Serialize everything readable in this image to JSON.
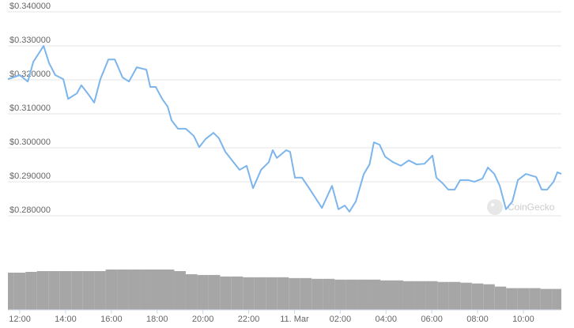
{
  "chart_data": {
    "type": "line",
    "watermark": "CoinGecko",
    "color": "#7cb5ec",
    "grid": true,
    "xlim": [
      -0.52,
      23.66
    ],
    "ylim": [
      0.2765,
      0.3435
    ],
    "yticks": [
      {
        "value": 0.28,
        "label": "$0.280000"
      },
      {
        "value": 0.29,
        "label": "$0.290000"
      },
      {
        "value": 0.3,
        "label": "$0.300000"
      },
      {
        "value": 0.31,
        "label": "$0.310000"
      },
      {
        "value": 0.32,
        "label": "$0.320000"
      },
      {
        "value": 0.33,
        "label": "$0.330000"
      },
      {
        "value": 0.34,
        "label": "$0.340000"
      }
    ],
    "xticks": [
      {
        "value": 0,
        "label": "12:00"
      },
      {
        "value": 2,
        "label": "14:00"
      },
      {
        "value": 4,
        "label": "16:00"
      },
      {
        "value": 6,
        "label": "18:00"
      },
      {
        "value": 8,
        "label": "20:00"
      },
      {
        "value": 10,
        "label": "22:00"
      },
      {
        "value": 12,
        "label": "11. Mar"
      },
      {
        "value": 14,
        "label": "02:00"
      },
      {
        "value": 16,
        "label": "04:00"
      },
      {
        "value": 18,
        "label": "06:00"
      },
      {
        "value": 20,
        "label": "08:00"
      },
      {
        "value": 22,
        "label": "10:00"
      }
    ],
    "x": [
      -0.52,
      0,
      0.35,
      0.59,
      1.04,
      1.28,
      1.55,
      1.9,
      2.11,
      2.49,
      2.69,
      3.01,
      3.25,
      3.52,
      3.87,
      4.15,
      4.49,
      4.77,
      5.11,
      5.53,
      5.7,
      5.94,
      6.22,
      6.46,
      6.63,
      6.91,
      7.25,
      7.6,
      7.84,
      8.12,
      8.46,
      8.7,
      8.98,
      9.33,
      9.6,
      9.91,
      10.19,
      10.54,
      10.88,
      11.05,
      11.23,
      11.64,
      11.81,
      12.02,
      12.33,
      12.68,
      12.95,
      13.2,
      13.64,
      13.92,
      14.2,
      14.4,
      14.68,
      15.03,
      15.28,
      15.47,
      15.72,
      15.96,
      16.3,
      16.65,
      16.99,
      17.34,
      17.68,
      18.03,
      18.2,
      18.48,
      18.72,
      19,
      19.24,
      19.59,
      19.86,
      20.21,
      20.45,
      20.73,
      20.97,
      21.24,
      21.52,
      21.76,
      22.11,
      22.56,
      22.8,
      23.04,
      23.32,
      23.49,
      23.66
    ],
    "values": [
      0.3202,
      0.3214,
      0.3195,
      0.3253,
      0.33,
      0.3249,
      0.3214,
      0.3202,
      0.3144,
      0.316,
      0.3184,
      0.3156,
      0.3133,
      0.3202,
      0.326,
      0.326,
      0.3207,
      0.3195,
      0.3237,
      0.323,
      0.3179,
      0.3179,
      0.3144,
      0.3121,
      0.3081,
      0.3056,
      0.3056,
      0.3035,
      0.3002,
      0.3026,
      0.3044,
      0.3028,
      0.2988,
      0.2958,
      0.2935,
      0.2947,
      0.2881,
      0.2935,
      0.2958,
      0.2993,
      0.297,
      0.2993,
      0.2988,
      0.2912,
      0.2912,
      0.2877,
      0.2849,
      0.2823,
      0.2888,
      0.2819,
      0.283,
      0.2812,
      0.2842,
      0.2923,
      0.2951,
      0.3016,
      0.3009,
      0.2974,
      0.2958,
      0.2947,
      0.2963,
      0.2951,
      0.2953,
      0.2977,
      0.2912,
      0.2895,
      0.2877,
      0.2877,
      0.2905,
      0.2905,
      0.29,
      0.2909,
      0.2942,
      0.2923,
      0.2888,
      0.2819,
      0.2842,
      0.2905,
      0.2923,
      0.2914,
      0.2877,
      0.2877,
      0.29,
      0.2928,
      0.2923
    ],
    "volume": {
      "color": "#a6a6a6",
      "ylim": [
        0,
        50
      ],
      "x": [
        -0.5,
        0,
        0.5,
        1,
        1.5,
        2,
        2.5,
        3,
        3.5,
        4,
        4.5,
        5,
        5.5,
        6,
        6.5,
        7,
        7.5,
        8,
        8.5,
        9,
        9.5,
        10,
        10.5,
        11,
        11.5,
        12,
        12.5,
        13,
        13.5,
        14,
        14.5,
        15,
        15.5,
        16,
        16.5,
        17,
        17.5,
        18,
        18.5,
        19,
        19.5,
        20,
        20.5,
        21,
        21.5,
        22,
        22.5,
        23,
        23.5
      ],
      "values": [
        48,
        48,
        49,
        50,
        50,
        50,
        50,
        50,
        50,
        52,
        52,
        52,
        52,
        52,
        52,
        50,
        46,
        45,
        45,
        43,
        43,
        42,
        42,
        42,
        42,
        41,
        41,
        40,
        40,
        39,
        39,
        39,
        39,
        38,
        38,
        37,
        37,
        37,
        36,
        36,
        35,
        34,
        33,
        30,
        28,
        28,
        28,
        27,
        27
      ]
    }
  }
}
